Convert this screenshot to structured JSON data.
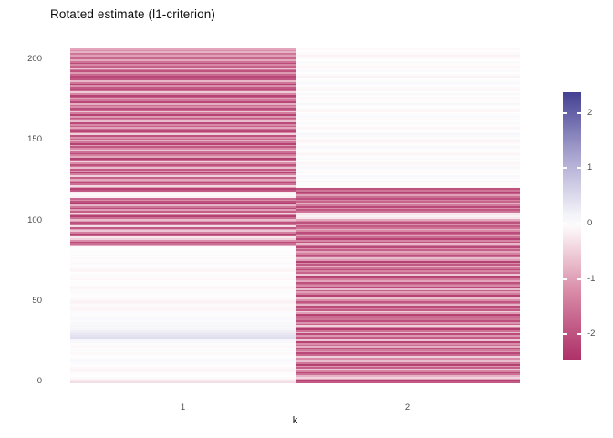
{
  "chart_data": {
    "type": "heatmap",
    "title": "Rotated estimate (l1-criterion)",
    "xlabel": "k",
    "ylabel": "",
    "x_categories": [
      "1",
      "2"
    ],
    "y_ticks": [
      0,
      50,
      100,
      150,
      200
    ],
    "n_rows": 208,
    "grid": false,
    "legend_position": "right",
    "colorbar": {
      "ticks": [
        2,
        1,
        0,
        -1,
        -2
      ],
      "limits": [
        -2.45,
        2.45
      ],
      "low": "#AE3168",
      "low_mid": "#D98BA7",
      "mid": "#FFFFFF",
      "high_mid": "#A9A5D0",
      "high": "#3E3A8F"
    },
    "series": [
      {
        "name": "k=1",
        "values": [
          -0.35,
          -0.22,
          -0.12,
          -0.05,
          0.02,
          -0.03,
          0.04,
          -0.1,
          -0.14,
          -0.08,
          0.03,
          -0.02,
          0.05,
          0.09,
          0.11,
          0.07,
          0.02,
          -0.04,
          -0.06,
          0.03,
          0.06,
          -0.02,
          -0.08,
          -0.05,
          0.04,
          0.08,
          0.12,
          0.3,
          0.45,
          0.38,
          0.32,
          0.26,
          0.2,
          0.14,
          0.1,
          0.12,
          0.08,
          0.1,
          0.06,
          0.09,
          0.05,
          0.07,
          0.04,
          0.06,
          -0.05,
          -0.1,
          -0.13,
          -0.08,
          -0.05,
          -0.11,
          -0.15,
          -0.09,
          -0.04,
          -0.07,
          0.02,
          -0.03,
          0.05,
          0.03,
          -0.06,
          -0.12,
          -0.05,
          0.02,
          0.04,
          -0.02,
          -0.08,
          -0.05,
          0.03,
          0.06,
          0.02,
          -0.09,
          -0.13,
          -0.06,
          0.02,
          0.05,
          0.08,
          0.04,
          -0.03,
          -0.05,
          0.02,
          0.06,
          0.03,
          -0.04,
          -0.02,
          0.03,
          -0.05,
          -0.9,
          -1.6,
          -2.1,
          -1.2,
          -0.5,
          -0.25,
          -1.8,
          -2.2,
          -1.4,
          -0.6,
          -1.0,
          -1.9,
          -0.35,
          -1.5,
          -2.0,
          -1.1,
          -0.7,
          -1.6,
          -2.25,
          -1.3,
          -0.5,
          -1.8,
          -1.0,
          -2.1,
          -1.5,
          -0.8,
          -2.3,
          -2.0,
          -1.2,
          -1.7,
          -0.15,
          -0.08,
          -0.1,
          -0.2,
          -1.9,
          -2.2,
          -1.0,
          -0.4,
          -1.6,
          -2.1,
          -1.3,
          -0.9,
          -1.8,
          -0.5,
          -1.4,
          -2.2,
          -1.1,
          -1.9,
          -0.7,
          -1.5,
          -2.0,
          -1.2,
          -0.45,
          -1.7,
          -2.25,
          -0.9,
          -1.4,
          -2.1,
          -1.6,
          -0.6,
          -1.2,
          -1.95,
          -1.0,
          -2.2,
          -1.5,
          -0.8,
          -1.7,
          -1.15,
          -2.0,
          -0.5,
          -1.35,
          -2.15,
          -1.6,
          -0.95,
          -1.8,
          -1.25,
          -2.1,
          -0.7,
          -1.5,
          -1.9,
          -1.05,
          -2.2,
          -1.4,
          -0.6,
          -1.75,
          -2.05,
          -1.2,
          -1.6,
          -0.85,
          -2.15,
          -1.45,
          -1.0,
          -1.85,
          -2.2,
          -1.3,
          -0.55,
          -1.65,
          -2.1,
          -1.9,
          -1.15,
          -2.25,
          -1.5,
          -0.75,
          -1.95,
          -1.35,
          -2.15,
          -1.7,
          -1.05,
          -2.0,
          -1.45,
          -0.65,
          -1.8,
          -1.25,
          -2.1,
          -1.55,
          -0.9,
          -1.7,
          -1.35,
          -1.0,
          -1.5,
          -0.8,
          -1.2,
          -0.95
        ]
      },
      {
        "name": "k=2",
        "values": [
          -1.9,
          -2.2,
          -1.0,
          -0.45,
          -0.8,
          -1.6,
          -2.1,
          -1.3,
          -0.6,
          -1.8,
          -1.1,
          -2.25,
          -1.5,
          -0.7,
          -1.95,
          -1.25,
          -0.5,
          -1.7,
          -2.15,
          -1.05,
          -1.45,
          -2.0,
          -0.85,
          -1.6,
          -1.2,
          -2.2,
          -0.6,
          -1.4,
          -1.85,
          -1.1,
          -2.1,
          -0.75,
          -1.55,
          -2.3,
          -1.3,
          -0.5,
          -1.75,
          -1.15,
          -2.05,
          -1.5,
          -0.9,
          -1.65,
          -2.2,
          -1.0,
          -0.55,
          -1.85,
          -1.35,
          -2.1,
          -0.8,
          -1.5,
          -1.95,
          -1.2,
          -0.65,
          -1.7,
          -2.25,
          -1.4,
          -1.0,
          -1.8,
          -0.7,
          -2.15,
          -1.25,
          -1.6,
          -2.0,
          -0.95,
          -1.45,
          -2.2,
          -1.1,
          -0.6,
          -1.75,
          -1.3,
          -2.1,
          -1.55,
          -0.85,
          -1.9,
          -1.2,
          -2.25,
          -1.05,
          -0.7,
          -1.65,
          -2.05,
          -1.35,
          -0.95,
          -1.8,
          -1.15,
          -2.15,
          -1.5,
          -0.75,
          -1.95,
          -1.3,
          -2.2,
          -1.6,
          -1.0,
          -1.7,
          -2.1,
          -1.25,
          -0.8,
          -1.55,
          -1.9,
          -1.15,
          -2.0,
          -1.4,
          -0.9,
          -0.25,
          -0.15,
          -0.3,
          -0.2,
          -1.5,
          -1.95,
          -1.2,
          -2.15,
          -1.45,
          -0.85,
          -1.75,
          -1.3,
          -2.05,
          -1.6,
          -1.0,
          -1.85,
          -2.2,
          -1.5,
          -2.0,
          -0.1,
          0.03,
          -0.05,
          0.06,
          -0.12,
          -0.04,
          0.05,
          0.09,
          0.02,
          -0.07,
          -0.03,
          0.04,
          0.1,
          0.05,
          -0.06,
          -0.1,
          -0.04,
          0.03,
          0.07,
          -0.02,
          -0.08,
          -0.13,
          -0.05,
          0.02,
          0.06,
          0.1,
          0.04,
          -0.03,
          -0.09,
          -0.14,
          -0.06,
          0.03,
          0.08,
          0.12,
          0.06,
          0.02,
          -0.05,
          -0.1,
          -0.04,
          0.03,
          0.07,
          -0.02,
          -0.06,
          0.04,
          0.09,
          0.05,
          -0.03,
          -0.08,
          -0.12,
          -0.05,
          0.02,
          0.06,
          0.1,
          0.04,
          -0.04,
          -0.09,
          -0.05,
          0.03,
          0.08,
          0.03,
          -0.05,
          -0.11,
          -0.06,
          0.02,
          0.05,
          0.09,
          0.04,
          -0.03,
          -0.07,
          -0.12,
          -0.05,
          0.02,
          0.06,
          0.03,
          -0.04,
          -0.08,
          -0.03,
          0.04,
          0.07,
          0.02,
          -0.05,
          -0.1,
          -0.14,
          -0.07,
          -0.03,
          0.02,
          -0.06
        ]
      }
    ]
  }
}
